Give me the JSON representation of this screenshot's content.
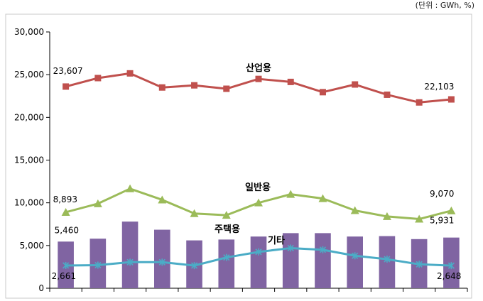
{
  "unit_note": "(단위 : GWh, %)",
  "chart_data": {
    "type": "bar+line",
    "categories": [
      "",
      "",
      "",
      "",
      "",
      "",
      "",
      "",
      "",
      "",
      "",
      "",
      ""
    ],
    "ylim": [
      0,
      30000
    ],
    "yticks": [
      0,
      5000,
      10000,
      15000,
      20000,
      25000,
      30000
    ],
    "ytick_labels": [
      "0",
      "5,000",
      "10,000",
      "15,000",
      "20,000",
      "25,000",
      "30,000"
    ],
    "grid": false,
    "colors": {
      "industrial": "#c0504d",
      "general": "#9bbb59",
      "residential": "#8064a2",
      "other": "#4bacc6",
      "axis": "#000000",
      "frame": "#c9c9c9"
    },
    "series": [
      {
        "key": "industrial",
        "name": "산업용",
        "type": "line",
        "marker": "square",
        "values": [
          23607,
          24600,
          25150,
          23500,
          23750,
          23350,
          24500,
          24150,
          22950,
          23850,
          22650,
          21750,
          22103
        ],
        "first_label": "23,607",
        "last_label": "22,103"
      },
      {
        "key": "general",
        "name": "일반용",
        "type": "line",
        "marker": "triangle",
        "values": [
          8893,
          9900,
          11650,
          10350,
          8750,
          8550,
          10000,
          11000,
          10500,
          9100,
          8400,
          8100,
          9070
        ],
        "first_label": "8,893",
        "last_label": "9,070"
      },
      {
        "key": "residential",
        "name": "주택용",
        "type": "bar",
        "values": [
          5460,
          5800,
          7800,
          6850,
          5600,
          5700,
          6050,
          6450,
          6450,
          6050,
          6100,
          5750,
          5931
        ],
        "first_label": "5,460",
        "last_label": "5,931"
      },
      {
        "key": "other",
        "name": "기타",
        "type": "line",
        "marker": "star",
        "values": [
          2661,
          2700,
          3050,
          3050,
          2650,
          3600,
          4250,
          4700,
          4500,
          3800,
          3400,
          2800,
          2648
        ],
        "first_label": "2,661",
        "last_label": "2,648"
      }
    ]
  }
}
